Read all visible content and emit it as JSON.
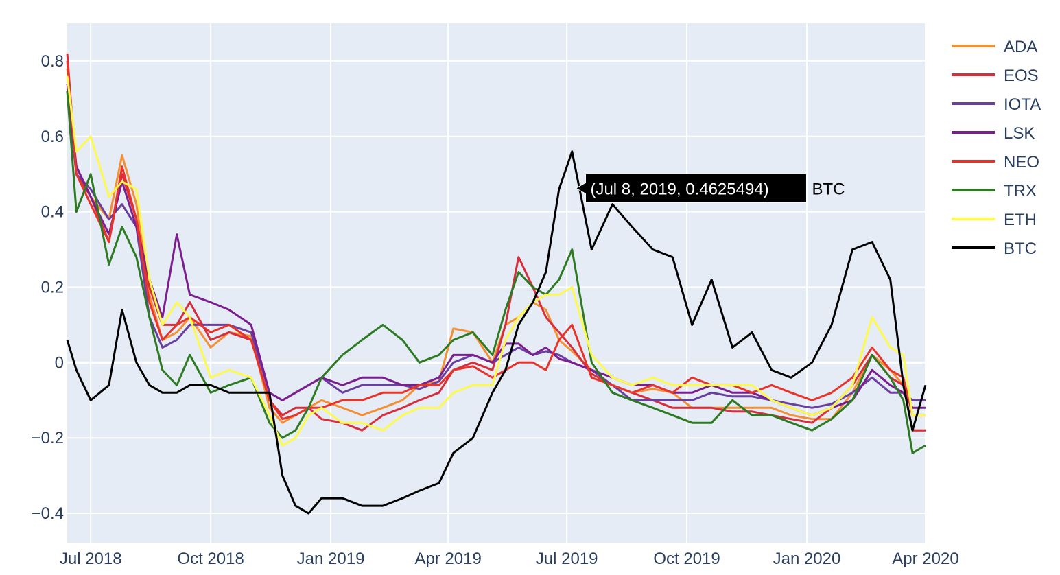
{
  "chart_data": {
    "type": "line",
    "title": "",
    "xlabel": "",
    "ylabel": "",
    "xlim": [
      "2018-06-13",
      "2020-04-01"
    ],
    "ylim": [
      -0.48,
      0.9
    ],
    "grid": true,
    "legend_position": "right",
    "x_ticks": [
      {
        "label": "Jul 2018",
        "date": "2018-07-01"
      },
      {
        "label": "Oct 2018",
        "date": "2018-10-01"
      },
      {
        "label": "Jan 2019",
        "date": "2019-01-01"
      },
      {
        "label": "Apr 2019",
        "date": "2019-04-01"
      },
      {
        "label": "Jul 2019",
        "date": "2019-07-01"
      },
      {
        "label": "Oct 2019",
        "date": "2019-10-01"
      },
      {
        "label": "Jan 2020",
        "date": "2020-01-01"
      },
      {
        "label": "Apr 2020",
        "date": "2020-04-01"
      }
    ],
    "y_ticks": [
      {
        "label": "0.8",
        "value": 0.8
      },
      {
        "label": "0.6",
        "value": 0.6
      },
      {
        "label": "0.4",
        "value": 0.4
      },
      {
        "label": "0.2",
        "value": 0.2
      },
      {
        "label": "0",
        "value": 0
      },
      {
        "label": "−0.2",
        "value": -0.2
      },
      {
        "label": "−0.4",
        "value": -0.4
      }
    ],
    "x": [
      "2018-06-13",
      "2018-06-20",
      "2018-07-01",
      "2018-07-15",
      "2018-07-25",
      "2018-08-05",
      "2018-08-15",
      "2018-08-25",
      "2018-09-05",
      "2018-09-15",
      "2018-10-01",
      "2018-10-15",
      "2018-11-01",
      "2018-11-15",
      "2018-11-25",
      "2018-12-05",
      "2018-12-15",
      "2018-12-25",
      "2019-01-10",
      "2019-01-25",
      "2019-02-10",
      "2019-02-25",
      "2019-03-10",
      "2019-03-25",
      "2019-04-05",
      "2019-04-20",
      "2019-05-05",
      "2019-05-15",
      "2019-05-25",
      "2019-06-05",
      "2019-06-15",
      "2019-06-25",
      "2019-07-05",
      "2019-07-20",
      "2019-08-05",
      "2019-08-20",
      "2019-09-05",
      "2019-09-20",
      "2019-10-05",
      "2019-10-20",
      "2019-11-05",
      "2019-11-20",
      "2019-12-05",
      "2019-12-20",
      "2020-01-05",
      "2020-01-20",
      "2020-02-05",
      "2020-02-20",
      "2020-03-05",
      "2020-03-15",
      "2020-03-22",
      "2020-04-01"
    ],
    "series": [
      {
        "name": "ADA",
        "color": "#f58f34",
        "values": [
          0.78,
          0.52,
          0.44,
          0.38,
          0.55,
          0.42,
          0.18,
          0.06,
          0.08,
          0.12,
          0.04,
          0.08,
          0.07,
          -0.12,
          -0.16,
          -0.14,
          -0.12,
          -0.1,
          -0.12,
          -0.14,
          -0.12,
          -0.1,
          -0.06,
          -0.05,
          0.09,
          0.08,
          0.0,
          0.1,
          0.12,
          0.16,
          0.14,
          0.06,
          0.03,
          -0.02,
          -0.06,
          -0.08,
          -0.07,
          -0.08,
          -0.12,
          -0.12,
          -0.12,
          -0.12,
          -0.12,
          -0.14,
          -0.15,
          -0.15,
          -0.08,
          0.02,
          -0.02,
          -0.06,
          -0.18,
          -0.18
        ]
      },
      {
        "name": "EOS",
        "color": "#d62f3c",
        "values": [
          0.82,
          0.5,
          0.44,
          0.32,
          0.5,
          0.38,
          0.2,
          0.1,
          0.1,
          0.16,
          0.06,
          0.08,
          0.06,
          -0.1,
          -0.14,
          -0.12,
          -0.12,
          -0.15,
          -0.16,
          -0.18,
          -0.14,
          -0.12,
          -0.1,
          -0.08,
          -0.02,
          0.0,
          -0.02,
          0.1,
          0.28,
          0.2,
          0.12,
          0.08,
          0.04,
          -0.03,
          -0.06,
          -0.08,
          -0.1,
          -0.12,
          -0.12,
          -0.12,
          -0.13,
          -0.13,
          -0.14,
          -0.15,
          -0.16,
          -0.12,
          -0.06,
          0.02,
          -0.04,
          -0.06,
          -0.18,
          -0.18
        ]
      },
      {
        "name": "IOTA",
        "color": "#6a3fa0",
        "values": [
          0.72,
          0.5,
          0.46,
          0.38,
          0.42,
          0.36,
          0.12,
          0.04,
          0.06,
          0.1,
          0.1,
          0.1,
          0.08,
          -0.08,
          -0.1,
          -0.08,
          -0.06,
          -0.04,
          -0.08,
          -0.06,
          -0.06,
          -0.06,
          -0.07,
          -0.05,
          0.0,
          0.02,
          0.0,
          0.02,
          0.04,
          0.02,
          0.03,
          0.02,
          0.0,
          -0.02,
          -0.06,
          -0.1,
          -0.1,
          -0.1,
          -0.1,
          -0.08,
          -0.09,
          -0.09,
          -0.1,
          -0.11,
          -0.12,
          -0.11,
          -0.08,
          -0.04,
          -0.08,
          -0.08,
          -0.1,
          -0.1
        ]
      },
      {
        "name": "LSK",
        "color": "#7b1f8f",
        "values": [
          0.74,
          0.52,
          0.44,
          0.34,
          0.48,
          0.36,
          0.22,
          0.12,
          0.34,
          0.18,
          0.16,
          0.14,
          0.1,
          -0.08,
          -0.1,
          -0.08,
          -0.06,
          -0.04,
          -0.06,
          -0.04,
          -0.04,
          -0.06,
          -0.06,
          -0.04,
          0.02,
          0.02,
          0.0,
          0.05,
          0.05,
          0.02,
          0.04,
          0.01,
          0.0,
          -0.02,
          -0.04,
          -0.06,
          -0.06,
          -0.08,
          -0.08,
          -0.06,
          -0.08,
          -0.08,
          -0.1,
          -0.12,
          -0.14,
          -0.12,
          -0.1,
          -0.02,
          -0.06,
          -0.08,
          -0.12,
          -0.12
        ]
      },
      {
        "name": "NEO",
        "color": "#e8332a",
        "values": [
          0.8,
          0.5,
          0.42,
          0.32,
          0.52,
          0.38,
          0.16,
          0.06,
          0.1,
          0.12,
          0.08,
          0.1,
          0.06,
          -0.1,
          -0.15,
          -0.14,
          -0.12,
          -0.12,
          -0.1,
          -0.1,
          -0.08,
          -0.08,
          -0.06,
          -0.06,
          -0.02,
          -0.01,
          -0.04,
          -0.02,
          0.0,
          0.0,
          -0.02,
          0.06,
          0.1,
          -0.04,
          -0.06,
          -0.08,
          -0.06,
          -0.08,
          -0.04,
          -0.06,
          -0.06,
          -0.08,
          -0.06,
          -0.08,
          -0.1,
          -0.08,
          -0.04,
          0.04,
          -0.02,
          -0.04,
          -0.14,
          -0.14
        ]
      },
      {
        "name": "TRX",
        "color": "#2d7a22",
        "values": [
          0.72,
          0.4,
          0.5,
          0.26,
          0.36,
          0.28,
          0.12,
          -0.02,
          -0.06,
          0.02,
          -0.08,
          -0.06,
          -0.04,
          -0.16,
          -0.2,
          -0.18,
          -0.12,
          -0.04,
          0.02,
          0.06,
          0.1,
          0.06,
          0.0,
          0.02,
          0.06,
          0.08,
          0.02,
          0.14,
          0.24,
          0.2,
          0.18,
          0.22,
          0.3,
          0.0,
          -0.08,
          -0.1,
          -0.12,
          -0.14,
          -0.16,
          -0.16,
          -0.1,
          -0.14,
          -0.14,
          -0.16,
          -0.18,
          -0.15,
          -0.1,
          0.02,
          -0.04,
          -0.1,
          -0.24,
          -0.22
        ]
      },
      {
        "name": "ETH",
        "color": "#fdfa4c",
        "values": [
          0.76,
          0.56,
          0.6,
          0.44,
          0.48,
          0.46,
          0.22,
          0.1,
          0.16,
          0.12,
          -0.04,
          -0.02,
          -0.04,
          -0.14,
          -0.22,
          -0.2,
          -0.14,
          -0.12,
          -0.16,
          -0.16,
          -0.18,
          -0.14,
          -0.12,
          -0.12,
          -0.08,
          -0.06,
          -0.06,
          0.06,
          0.12,
          0.16,
          0.18,
          0.18,
          0.2,
          0.02,
          -0.04,
          -0.06,
          -0.04,
          -0.06,
          -0.06,
          -0.06,
          -0.06,
          -0.06,
          -0.1,
          -0.12,
          -0.14,
          -0.12,
          -0.06,
          0.12,
          0.04,
          0.02,
          -0.14,
          -0.14
        ]
      },
      {
        "name": "BTC",
        "color": "#000000",
        "values": [
          0.06,
          -0.02,
          -0.1,
          -0.06,
          0.14,
          0.0,
          -0.06,
          -0.08,
          -0.08,
          -0.06,
          -0.06,
          -0.08,
          -0.08,
          -0.08,
          -0.3,
          -0.38,
          -0.4,
          -0.36,
          -0.36,
          -0.38,
          -0.38,
          -0.36,
          -0.34,
          -0.32,
          -0.24,
          -0.2,
          -0.08,
          -0.02,
          0.1,
          0.16,
          0.24,
          0.46,
          0.56,
          0.3,
          0.42,
          0.36,
          0.3,
          0.28,
          0.1,
          0.22,
          0.04,
          0.08,
          -0.02,
          -0.04,
          0.0,
          0.1,
          0.3,
          0.32,
          0.22,
          -0.06,
          -0.18,
          -0.06
        ]
      }
    ],
    "annotation": {
      "series": "BTC",
      "date": "2019-07-08",
      "value": 0.4625494,
      "text": "(Jul 8, 2019, 0.4625494)",
      "name": "BTC"
    }
  }
}
